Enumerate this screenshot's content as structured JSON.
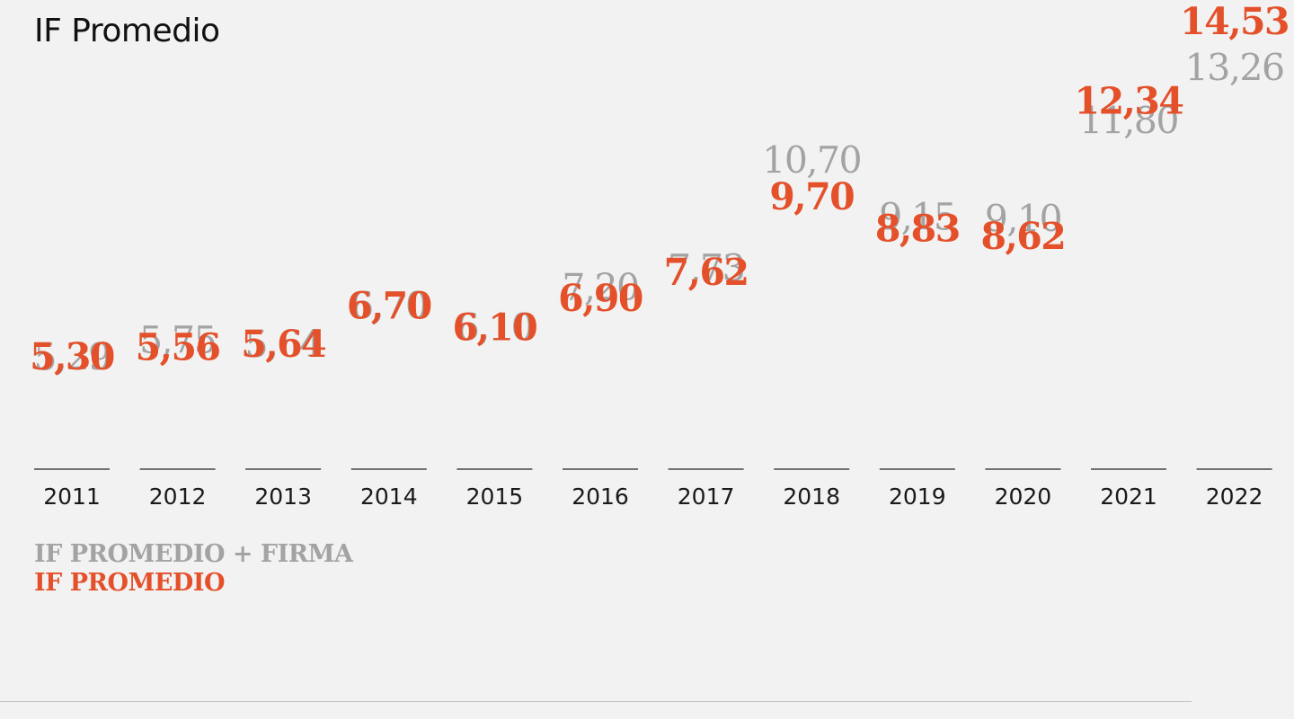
{
  "title": "IF Promedio",
  "chart_data": {
    "type": "table",
    "title": "IF Promedio",
    "categories": [
      "2011",
      "2012",
      "2013",
      "2014",
      "2015",
      "2016",
      "2017",
      "2018",
      "2019",
      "2020",
      "2021",
      "2022"
    ],
    "series": [
      {
        "name": "IF PROMEDIO + FIRMA",
        "color": "#a3a3a3",
        "labels": [
          "5,29",
          "5,75",
          "5,64",
          "6,70",
          "6,10",
          "7,20",
          "7,73",
          "10,70",
          "9,15",
          "9,10",
          "11,80",
          "13,26"
        ],
        "values": [
          5.29,
          5.75,
          5.64,
          6.7,
          6.1,
          7.2,
          7.73,
          10.7,
          9.15,
          9.1,
          11.8,
          13.26
        ]
      },
      {
        "name": "IF PROMEDIO",
        "color": "#e4502a",
        "labels": [
          "5,30",
          "5,56",
          "5,64",
          "6,70",
          "6,10",
          "6,90",
          "7,62",
          "9,70",
          "8,83",
          "8,62",
          "12,34",
          "14,53"
        ],
        "values": [
          5.3,
          5.56,
          5.64,
          6.7,
          6.1,
          6.9,
          7.62,
          9.7,
          8.83,
          8.62,
          12.34,
          14.53
        ]
      }
    ],
    "legend_position": "bottom-left",
    "grid": false
  },
  "legend": {
    "grey_label": "IF PROMEDIO + FIRMA",
    "orange_label": "IF PROMEDIO"
  }
}
